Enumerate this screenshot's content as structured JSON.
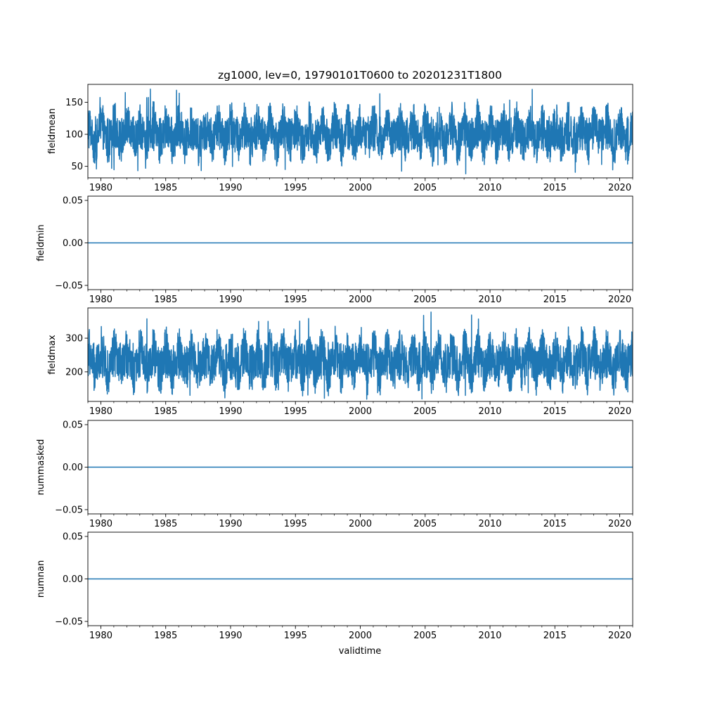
{
  "chart_data": {
    "type": "line",
    "title": "zg1000, lev=0, 19790101T0600 to 20201231T1800",
    "xlabel": "validtime",
    "xlim": [
      1979.0,
      2021.0
    ],
    "x_ticks": [
      1980,
      1985,
      1990,
      1995,
      2000,
      2005,
      2010,
      2015,
      2020
    ],
    "x_tick_labels": [
      "1980",
      "1985",
      "1990",
      "1995",
      "2000",
      "2005",
      "2010",
      "2015",
      "2020"
    ],
    "line_color": "#1f77b4",
    "panels": [
      {
        "ylabel": "fieldmean",
        "ylim": [
          32,
          178
        ],
        "yticks": [
          50,
          100,
          150
        ],
        "ytick_labels": [
          "50",
          "100",
          "150"
        ],
        "signal": {
          "kind": "noisy_seasonal",
          "mean": 101,
          "seasonal_amplitude": 20,
          "min": 38,
          "max": 171,
          "typical_low": 62,
          "typical_high": 140
        }
      },
      {
        "ylabel": "fieldmin",
        "ylim": [
          -0.055,
          0.055
        ],
        "yticks": [
          -0.05,
          0.0,
          0.05
        ],
        "ytick_labels": [
          "−0.05",
          "0.00",
          "0.05"
        ],
        "signal": {
          "kind": "constant",
          "value": 0
        }
      },
      {
        "ylabel": "fieldmax",
        "ylim": [
          112,
          390
        ],
        "yticks": [
          200,
          300
        ],
        "ytick_labels": [
          "200",
          "300"
        ],
        "signal": {
          "kind": "noisy_seasonal",
          "mean": 232,
          "seasonal_amplitude": 40,
          "min": 118,
          "max": 378,
          "typical_low": 160,
          "typical_high": 320
        }
      },
      {
        "ylabel": "nummasked",
        "ylim": [
          -0.055,
          0.055
        ],
        "yticks": [
          -0.05,
          0.0,
          0.05
        ],
        "ytick_labels": [
          "−0.05",
          "0.00",
          "0.05"
        ],
        "signal": {
          "kind": "constant",
          "value": 0
        }
      },
      {
        "ylabel": "numnan",
        "ylim": [
          -0.055,
          0.055
        ],
        "yticks": [
          -0.05,
          0.0,
          0.05
        ],
        "ytick_labels": [
          "−0.05",
          "0.00",
          "0.05"
        ],
        "signal": {
          "kind": "constant",
          "value": 0
        }
      }
    ]
  }
}
